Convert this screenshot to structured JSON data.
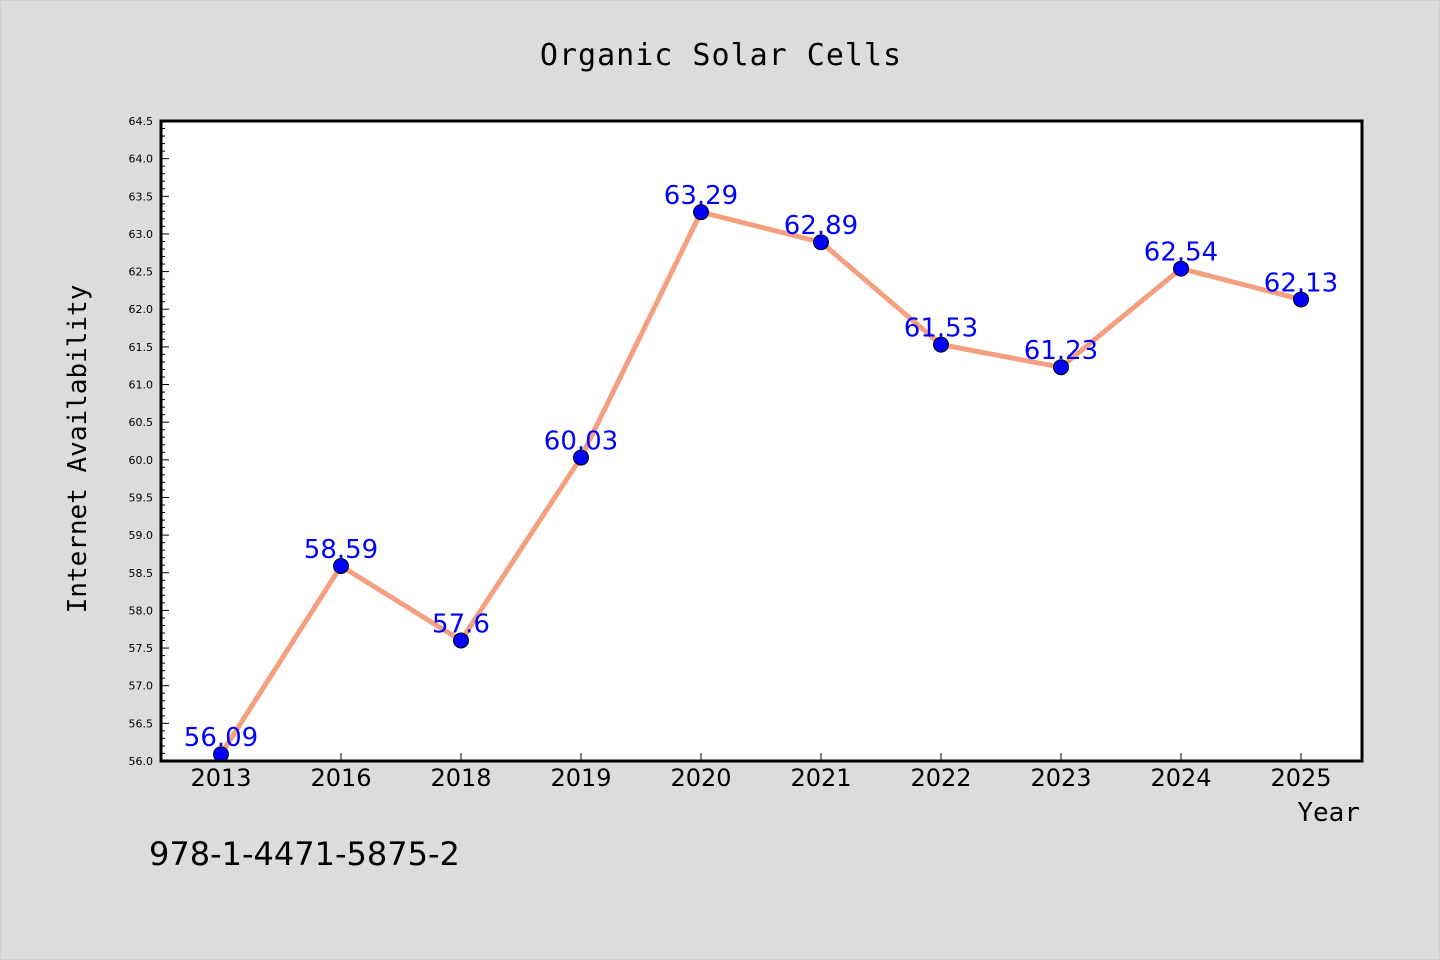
{
  "chart_data": {
    "type": "line",
    "title": "Organic Solar Cells",
    "xlabel": "Year",
    "ylabel": "Internet Availability",
    "categories": [
      "2013",
      "2016",
      "2018",
      "2019",
      "2020",
      "2021",
      "2022",
      "2023",
      "2024",
      "2025"
    ],
    "series": [
      {
        "values": [
          56.09,
          58.59,
          57.6,
          60.03,
          63.29,
          62.89,
          61.53,
          61.23,
          62.54,
          62.13
        ],
        "labels": [
          "56.09",
          "58.59",
          "57.6",
          "60.03",
          "63.29",
          "62.89",
          "61.53",
          "61.23",
          "62.54",
          "62.13"
        ],
        "line_color": "#f4a080",
        "marker_color": "#0000ff"
      }
    ],
    "ylim": [
      56.0,
      64.5
    ],
    "yticks": [
      "56.0",
      "56.5",
      "57.0",
      "57.5",
      "58.0",
      "58.5",
      "59.0",
      "59.5",
      "60.0",
      "60.5",
      "61.0",
      "61.5",
      "62.0",
      "62.5",
      "63.0",
      "63.5",
      "64.0",
      "64.5"
    ],
    "grid": false,
    "legend": "none"
  },
  "annotation": {
    "text": "978-1-4471-5875-2"
  },
  "colors": {
    "background": "#dcdcdc",
    "plot_background": "#ffffff",
    "line": "#f4a080",
    "marker": "#0000ff",
    "data_label": "#0000ff"
  }
}
